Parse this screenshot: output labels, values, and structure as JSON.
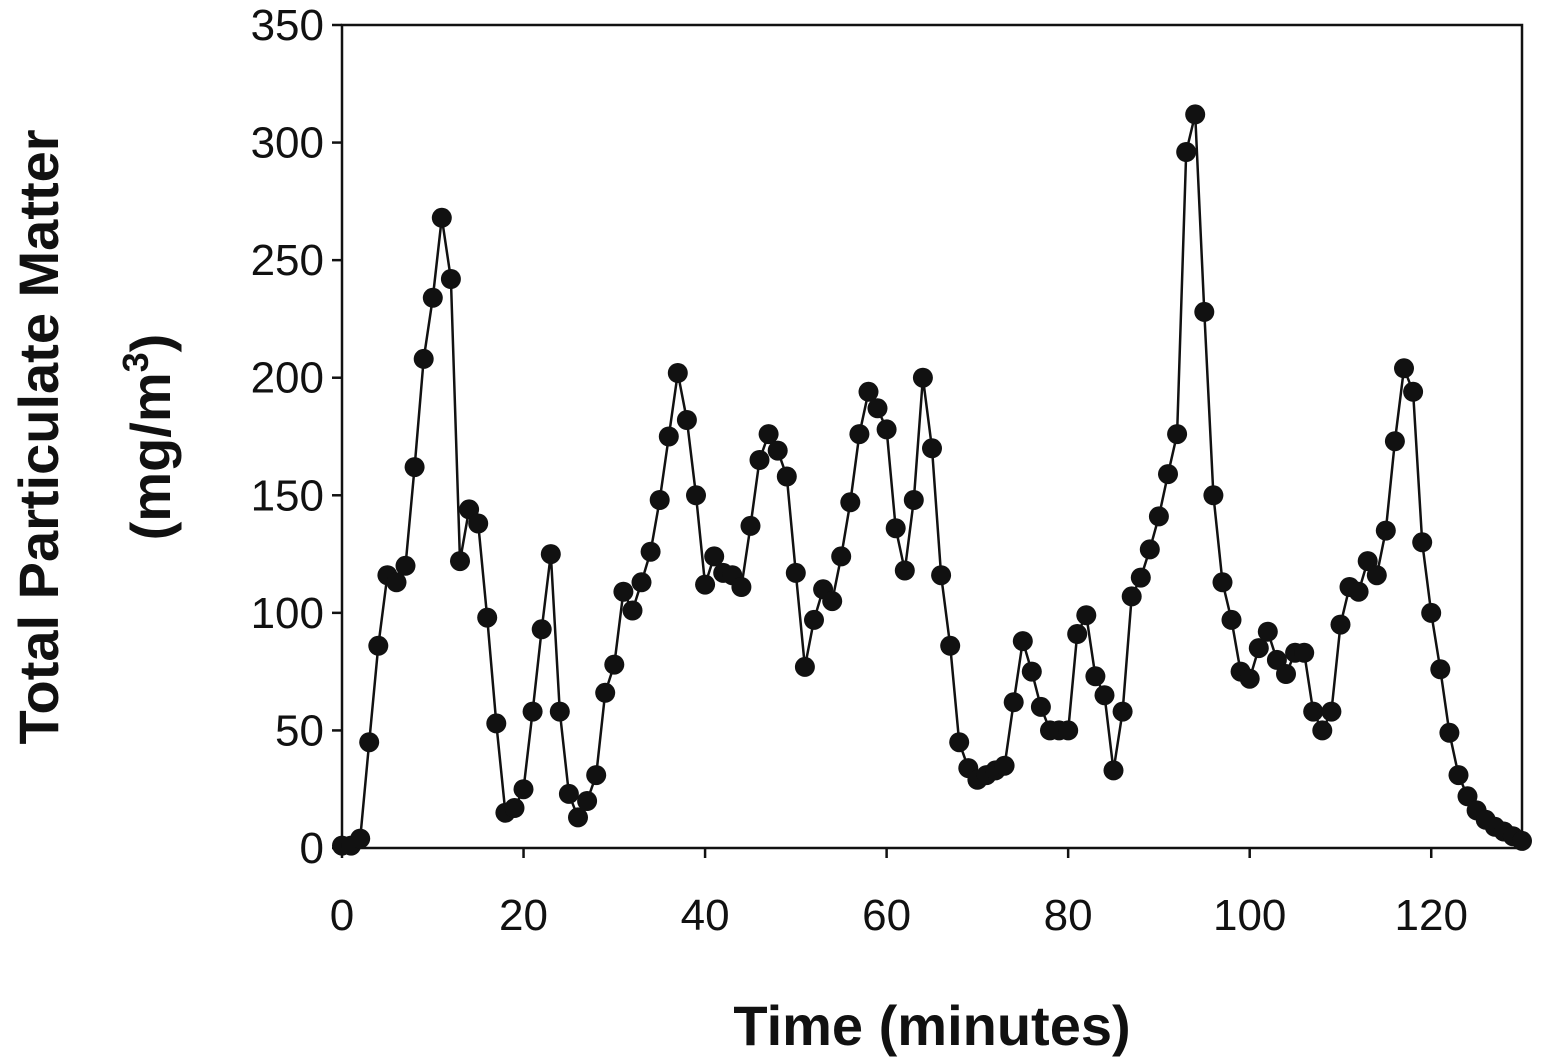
{
  "chart_data": {
    "type": "line",
    "title": "",
    "xlabel": "Time (minutes)",
    "ylabel_line1": "Total Particulate Matter",
    "ylabel_line2": "(mg/m",
    "ylabel_sup": "3",
    "ylabel_close": ")",
    "xlim": [
      0,
      130
    ],
    "ylim": [
      0,
      350
    ],
    "xticks": [
      0,
      20,
      40,
      60,
      80,
      100,
      120
    ],
    "yticks": [
      0,
      50,
      100,
      150,
      200,
      250,
      300,
      350
    ],
    "grid": false,
    "legend": "none",
    "marker": "filled-circle",
    "color": "#111111",
    "series": [
      {
        "x": [
          0,
          1,
          2,
          3,
          4,
          5,
          6,
          7,
          8,
          9,
          10,
          11,
          12,
          13,
          14,
          15,
          16,
          17,
          18,
          19,
          20,
          21,
          22,
          23,
          24,
          25,
          26,
          27,
          28,
          29,
          30,
          31,
          32,
          33,
          34,
          35,
          36,
          37,
          38,
          39,
          40,
          41,
          42,
          43,
          44,
          45,
          46,
          47,
          48,
          49,
          50,
          51,
          52,
          53,
          54,
          55,
          56,
          57,
          58,
          59,
          60,
          61,
          62,
          63,
          64,
          65,
          66,
          67,
          68,
          69,
          70,
          71,
          72,
          73,
          74,
          75,
          76,
          77,
          78,
          79,
          80,
          81,
          82,
          83,
          84,
          85,
          86,
          87,
          88,
          89,
          90,
          91,
          92,
          93,
          94,
          95,
          96,
          97,
          98,
          99,
          100,
          101,
          102,
          103,
          104,
          105,
          106,
          107,
          108,
          109,
          110,
          111,
          112,
          113,
          114,
          115,
          116,
          117,
          118,
          119,
          120,
          121,
          122,
          123,
          124,
          125,
          126,
          127,
          128,
          129,
          130
        ],
        "y": [
          1,
          1,
          4,
          45,
          86,
          116,
          113,
          120,
          162,
          208,
          234,
          268,
          242,
          122,
          144,
          138,
          98,
          53,
          15,
          17,
          25,
          58,
          93,
          125,
          58,
          23,
          13,
          20,
          31,
          66,
          78,
          109,
          101,
          113,
          126,
          148,
          175,
          202,
          182,
          150,
          112,
          124,
          117,
          116,
          111,
          137,
          165,
          176,
          169,
          158,
          117,
          77,
          97,
          110,
          105,
          124,
          147,
          176,
          194,
          187,
          178,
          136,
          118,
          148,
          200,
          170,
          116,
          86,
          45,
          34,
          29,
          31,
          33,
          35,
          62,
          88,
          75,
          60,
          50,
          50,
          50,
          91,
          99,
          73,
          65,
          33,
          58,
          107,
          115,
          127,
          141,
          159,
          176,
          296,
          312,
          228,
          150,
          113,
          97,
          75,
          72,
          85,
          92,
          80,
          74,
          83,
          83,
          58,
          50,
          58,
          95,
          111,
          109,
          122,
          116,
          135,
          173,
          204,
          194,
          130,
          100,
          76,
          49,
          31,
          22,
          16,
          12,
          9,
          7,
          5,
          3
        ]
      }
    ]
  }
}
